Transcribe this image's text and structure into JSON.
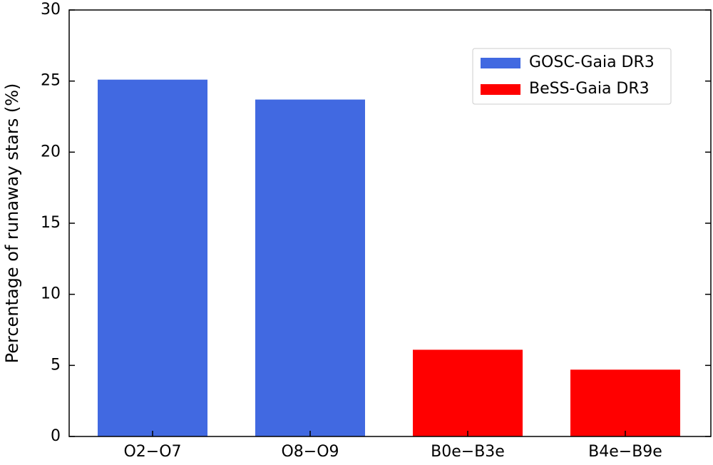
{
  "chart_data": {
    "type": "bar",
    "y_label": "Percentage of runaway stars (%)",
    "categories": [
      "O2−O7",
      "O8−O9",
      "B0e−B3e",
      "B4e−B9e"
    ],
    "series": [
      {
        "name": "GOSC-Gaia DR3",
        "color": "#4169e1",
        "values": [
          25.1,
          23.7,
          null,
          null
        ]
      },
      {
        "name": "BeSS-Gaia DR3",
        "color": "#ff0000",
        "values": [
          null,
          null,
          6.1,
          4.7
        ]
      }
    ],
    "ylim": [
      0,
      30
    ],
    "yticks": [
      0,
      5,
      10,
      15,
      20,
      25,
      30
    ],
    "legend": "upper right",
    "grid": false
  }
}
